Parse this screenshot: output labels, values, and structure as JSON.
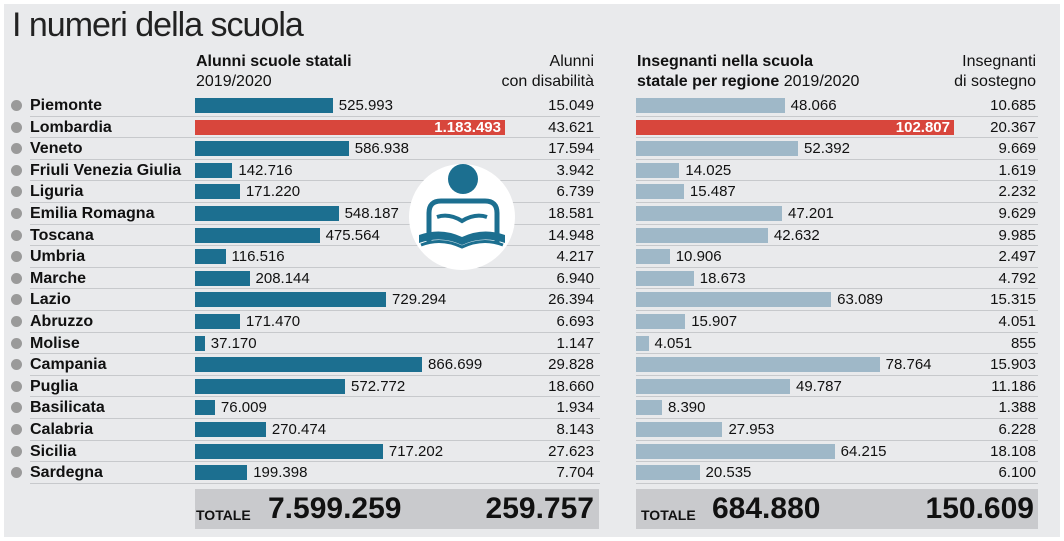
{
  "title": "I numeri della scuola",
  "headers": {
    "students_title": "Alunni scuole statali",
    "students_year": "2019/2020",
    "disability_line1": "Alunni",
    "disability_line2": "con disabilità",
    "teachers_title_line1": "Insegnanti nella scuola",
    "teachers_title_line2": "statale per regione",
    "teachers_year": "2019/2020",
    "support_line1": "Insegnanti",
    "support_line2": "di sostegno"
  },
  "colors": {
    "student_bar": "#1c6f90",
    "teacher_bar": "#9fb8c8",
    "highlight": "#d8463c"
  },
  "icon": "reading-student-icon",
  "chart_data": [
    {
      "type": "bar",
      "orientation": "horizontal",
      "highlight_category": "Lombardia",
      "categories": [
        "Piemonte",
        "Lombardia",
        "Veneto",
        "Friuli Venezia Giulia",
        "Liguria",
        "Emilia Romagna",
        "Toscana",
        "Umbria",
        "Marche",
        "Lazio",
        "Abruzzo",
        "Molise",
        "Campania",
        "Puglia",
        "Basilicata",
        "Calabria",
        "Sicilia",
        "Sardegna"
      ],
      "series": [
        {
          "name": "Alunni scuole statali",
          "values": [
            525993,
            1183493,
            586938,
            142716,
            171220,
            548187,
            475564,
            116516,
            208144,
            729294,
            171470,
            37170,
            866699,
            572772,
            76009,
            270474,
            717202,
            199398
          ],
          "labels": [
            "525.993",
            "1.183.493",
            "586.938",
            "142.716",
            "171.220",
            "548.187",
            "475.564",
            "116.516",
            "208.144",
            "729.294",
            "171.470",
            "37.170",
            "866.699",
            "572.772",
            "76.009",
            "270.474",
            "717.202",
            "199.398"
          ]
        },
        {
          "name": "Alunni con disabilità",
          "values": [
            15049,
            43621,
            17594,
            3942,
            6739,
            18581,
            14948,
            4217,
            6940,
            26394,
            6693,
            1147,
            29828,
            18660,
            1934,
            8143,
            27623,
            7704
          ],
          "labels": [
            "15.049",
            "43.621",
            "17.594",
            "3.942",
            "6.739",
            "18.581",
            "14.948",
            "4.217",
            "6.940",
            "26.394",
            "6.693",
            "1.147",
            "29.828",
            "18.660",
            "1.934",
            "8.143",
            "27.623",
            "7.704"
          ]
        }
      ],
      "totals": {
        "label": "TOTALE",
        "students": "7.599.259",
        "disability": "259.757"
      }
    },
    {
      "type": "bar",
      "orientation": "horizontal",
      "highlight_category": "Lombardia",
      "categories": [
        "Piemonte",
        "Lombardia",
        "Veneto",
        "Friuli Venezia Giulia",
        "Liguria",
        "Emilia Romagna",
        "Toscana",
        "Umbria",
        "Marche",
        "Lazio",
        "Abruzzo",
        "Molise",
        "Campania",
        "Puglia",
        "Basilicata",
        "Calabria",
        "Sicilia",
        "Sardegna"
      ],
      "series": [
        {
          "name": "Insegnanti nella scuola statale per regione",
          "values": [
            48066,
            102807,
            52392,
            14025,
            15487,
            47201,
            42632,
            10906,
            18673,
            63089,
            15907,
            4051,
            78764,
            49787,
            8390,
            27953,
            64215,
            20535
          ],
          "labels": [
            "48.066",
            "102.807",
            "52.392",
            "14.025",
            "15.487",
            "47.201",
            "42.632",
            "10.906",
            "18.673",
            "63.089",
            "15.907",
            "4.051",
            "78.764",
            "49.787",
            "8.390",
            "27.953",
            "64.215",
            "20.535"
          ]
        },
        {
          "name": "Insegnanti di sostegno",
          "values": [
            10685,
            20367,
            9669,
            1619,
            2232,
            9629,
            9985,
            2497,
            4792,
            15315,
            4051,
            855,
            15903,
            11186,
            1388,
            6228,
            18108,
            6100
          ],
          "labels": [
            "10.685",
            "20.367",
            "9.669",
            "1.619",
            "2.232",
            "9.629",
            "9.985",
            "2.497",
            "4.792",
            "15.315",
            "4.051",
            "855",
            "15.903",
            "11.186",
            "1.388",
            "6.228",
            "18.108",
            "6.100"
          ]
        }
      ],
      "totals": {
        "label": "TOTALE",
        "teachers": "684.880",
        "support": "150.609"
      }
    }
  ]
}
